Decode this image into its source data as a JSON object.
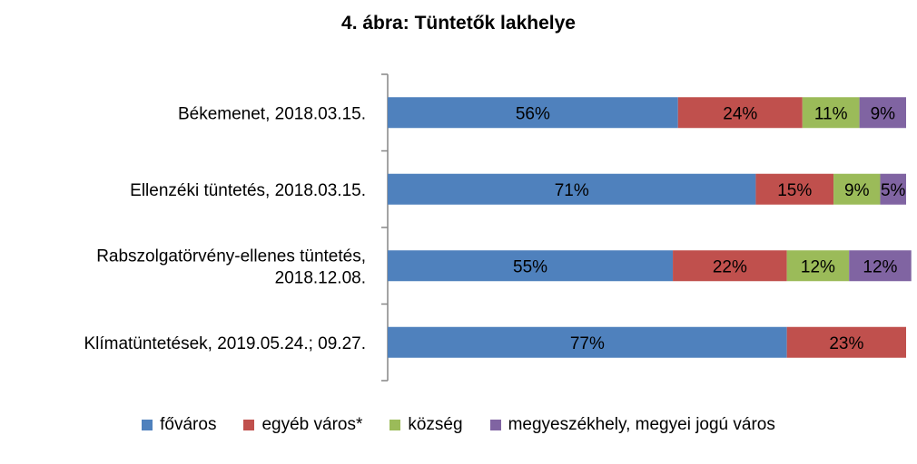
{
  "chart_data": {
    "type": "bar",
    "orientation": "horizontal",
    "stacked": "percent",
    "title": "4. ábra: Tüntetők lakhelye",
    "categories": [
      [
        "Békemenet, 2018.03.15."
      ],
      [
        "Ellenzéki tüntetés, 2018.03.15."
      ],
      [
        "Rabszolgatörvény-ellenes tüntetés,",
        "2018.12.08."
      ],
      [
        "Klímatüntetések, 2019.05.24.; 09.27."
      ]
    ],
    "series": [
      {
        "name": "főváros",
        "color": "#4f81bd",
        "values": [
          56,
          71,
          55,
          77
        ]
      },
      {
        "name": "egyéb város*",
        "color": "#c0504d",
        "values": [
          24,
          15,
          22,
          23
        ]
      },
      {
        "name": "község",
        "color": "#9bbb59",
        "values": [
          11,
          9,
          12,
          0
        ]
      },
      {
        "name": "megyeszékhely, megyei jogú város",
        "color": "#8064a2",
        "values": [
          9,
          5,
          12,
          0
        ]
      }
    ],
    "value_suffix": "%",
    "xlim": [
      0,
      100
    ],
    "grid": false,
    "legend_position": "bottom"
  }
}
